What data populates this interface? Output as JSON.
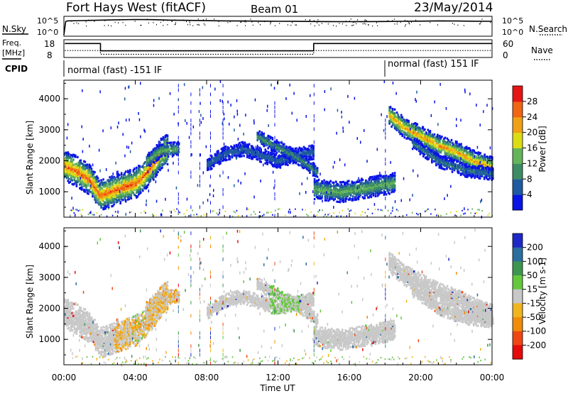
{
  "header": {
    "station": "Fort Hays West (fitACF)",
    "beam": "Beam 01",
    "date": "23/May/2014"
  },
  "noise_panel": {
    "left_label": "N.Sky",
    "right_label": "N.Search",
    "left_ticks": [
      "10^5",
      "10^0"
    ],
    "right_ticks": [
      "10^5",
      "10^0"
    ]
  },
  "freq_panel": {
    "left_label_1": "Freq.",
    "left_label_2": "[MHz]",
    "right_label": "Nave",
    "left_ticks": [
      "18",
      "8"
    ],
    "right_ticks": [
      "60",
      "0"
    ]
  },
  "cpid": {
    "label": "CPID",
    "segment_1": "normal (fast) -151 IF",
    "segment_2": "normal (fast) 151 IF"
  },
  "x_axis": {
    "label": "Time UT",
    "ticks": [
      "00:00",
      "04:00",
      "08:00",
      "12:00",
      "16:00",
      "20:00",
      "00:00"
    ]
  },
  "power_panel": {
    "ylabel": "Slant Range [km]",
    "yticks": [
      "1000",
      "2000",
      "3000",
      "4000"
    ],
    "colorbar_label": "Power [dB]",
    "colorbar_ticks": [
      "4",
      "8",
      "12",
      "16",
      "20",
      "24",
      "28"
    ],
    "colors": [
      "#0a14e6",
      "#1e5aa0",
      "#3c8c64",
      "#64b45a",
      "#dcdc14",
      "#f0a014",
      "#f06414",
      "#e61414"
    ]
  },
  "velocity_panel": {
    "ylabel": "Slant Range [km]",
    "yticks": [
      "1000",
      "2000",
      "3000",
      "4000"
    ],
    "colorbar_label": "Velocity [m s-1]",
    "colorbar_ticks": [
      "200",
      "100",
      "50",
      "15",
      "-15",
      "-50",
      "-100",
      "-200"
    ],
    "colors": [
      "#1e28c8",
      "#2a6ea0",
      "#3c9650",
      "#64c83c",
      "#c8c8c8",
      "#f0b41e",
      "#f08c0a",
      "#f04614",
      "#e60a0a"
    ]
  },
  "chart_data": [
    {
      "type": "line",
      "name": "noise",
      "x_range_hours": [
        0,
        24
      ],
      "y_scale": "log",
      "ylim": [
        1,
        100000
      ],
      "x": [
        0,
        0.1,
        0.2,
        1,
        2,
        3,
        4,
        5,
        6,
        7,
        8,
        9,
        10,
        11,
        12,
        13,
        14,
        15,
        16,
        17,
        18,
        19,
        20,
        21,
        22,
        23,
        24
      ],
      "values": [
        1,
        8000,
        12000,
        15000,
        20000,
        25000,
        30000,
        27000,
        20000,
        17000,
        14000,
        12000,
        11000,
        10000,
        9000,
        8500,
        8000,
        7500,
        7000,
        7500,
        8000,
        9000,
        10000,
        12000,
        11000,
        9500,
        9000
      ]
    },
    {
      "type": "line",
      "name": "frequency",
      "x_range_hours": [
        0,
        24
      ],
      "ylim": [
        8,
        18
      ],
      "series": [
        {
          "x": [
            0.05,
            2.05,
            2.05,
            14.0,
            14.0,
            24
          ],
          "values": [
            16.5,
            16.5,
            11.8,
            11.8,
            16.5,
            16.5
          ]
        },
        {
          "x": [
            0.05,
            2.05,
            2.05,
            14.0,
            14.0,
            24
          ],
          "values": [
            12,
            12,
            9.6,
            9.6,
            12,
            12
          ]
        }
      ]
    },
    {
      "type": "heatmap",
      "name": "power",
      "x_range_hours": [
        0,
        24
      ],
      "ylim_km": [
        180,
        4600
      ],
      "bands": [
        {
          "x_hours": [
            0,
            0.6,
            1.4,
            2.0,
            3.0,
            4.0,
            4.4,
            5.0,
            5.4,
            5.8
          ],
          "center_km": [
            1850,
            1700,
            1400,
            900,
            1100,
            1300,
            1500,
            1900,
            2250,
            2400
          ],
          "width_km": 480,
          "max_db": 30
        },
        {
          "x_hours": [
            4.6,
            5.4,
            6.4
          ],
          "center_km": [
            2000,
            2350,
            2400
          ],
          "width_km": 220,
          "max_db": 16
        },
        {
          "x_hours": [
            8.0,
            9.0,
            10.0,
            11.0,
            12.0,
            13.0,
            14.0
          ],
          "center_km": [
            1900,
            2250,
            2400,
            2200,
            2000,
            2200,
            2300
          ],
          "width_km": 220,
          "max_db": 8
        },
        {
          "x_hours": [
            10.8,
            11.8,
            12.8,
            13.6,
            14.2
          ],
          "center_km": [
            2800,
            2500,
            2200,
            1900,
            1600
          ],
          "width_km": 200,
          "max_db": 12
        },
        {
          "x_hours": [
            14.0,
            15.5,
            17.0,
            18.5
          ],
          "center_km": [
            1100,
            1000,
            1150,
            1300
          ],
          "width_km": 320,
          "max_db": 16
        },
        {
          "x_hours": [
            18.2,
            19.0,
            20.0,
            21.0,
            22.0,
            23.0,
            24.0
          ],
          "center_km": [
            3500,
            3100,
            2800,
            2500,
            2300,
            2000,
            1800
          ],
          "width_km": 320,
          "max_db": 26
        },
        {
          "x_hours": [
            19.5,
            21.0,
            22.5,
            24.0
          ],
          "center_km": [
            2600,
            2000,
            1700,
            1600
          ],
          "width_km": 200,
          "max_db": 10
        }
      ]
    },
    {
      "type": "heatmap",
      "name": "velocity",
      "x_range_hours": [
        0,
        24
      ],
      "ylim_km": [
        180,
        4600
      ],
      "dominant_class": "-15 to 15",
      "notes": "same echo regions as power panel; mostly near-zero velocity with -50 to -100 patches near 03:00-06:30 and 50 to 100 patches near 12:00"
    }
  ]
}
